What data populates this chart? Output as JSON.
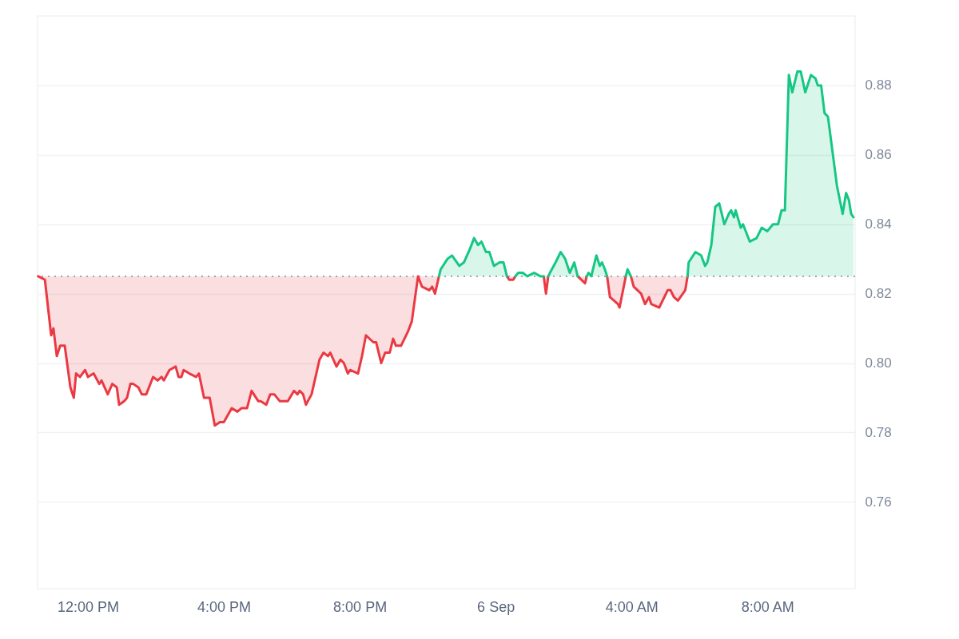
{
  "chart_data": {
    "type": "area",
    "xlim": [
      "--09-05T10:31",
      "--09-06T10:35"
    ],
    "xticks": [
      {
        "value": "--09-05T12:00",
        "label": "12:00 PM"
      },
      {
        "value": "--09-05T16:00",
        "label": "4:00 PM"
      },
      {
        "value": "--09-05T20:00",
        "label": "8:00 PM"
      },
      {
        "value": "--09-06T00:00",
        "label": "6 Sep"
      },
      {
        "value": "--09-06T04:00",
        "label": "4:00 AM"
      },
      {
        "value": "--09-06T08:00",
        "label": "8:00 AM"
      }
    ],
    "ylim": [
      0.735,
      0.9
    ],
    "yticks": [
      0.76,
      0.78,
      {
        "value": 0.8,
        "label": "0.80"
      },
      0.82,
      0.84,
      0.86,
      0.88
    ],
    "grid": "y",
    "ref_lines": [
      {
        "axis": "y",
        "value": 0.825,
        "line_style": "dotted",
        "color": "#808a9d"
      }
    ],
    "x": [
      "--09-05T10:32",
      "--09-05T10:44",
      "--09-05T10:55",
      "--09-05T10:59",
      "--09-05T11:05",
      "--09-05T11:11",
      "--09-05T11:19",
      "--09-05T11:29",
      "--09-05T11:35",
      "--09-05T11:39",
      "--09-05T11:46",
      "--09-05T11:55",
      "--09-05T12:00",
      "--09-05T12:10",
      "--09-05T12:20",
      "--09-05T12:24",
      "--09-05T12:35",
      "--09-05T12:43",
      "--09-05T12:51",
      "--09-05T12:55",
      "--09-05T13:04",
      "--09-05T13:09",
      "--09-05T13:15",
      "--09-05T13:20",
      "--09-05T13:29",
      "--09-05T13:35",
      "--09-05T13:43",
      "--09-05T13:55",
      "--09-05T14:03",
      "--09-05T14:10",
      "--09-05T14:14",
      "--09-05T14:24",
      "--09-05T14:35",
      "--09-05T14:40",
      "--09-05T14:45",
      "--09-05T14:49",
      "--09-05T14:59",
      "--09-05T15:11",
      "--09-05T15:16",
      "--09-05T15:25",
      "--09-05T15:35",
      "--09-05T15:44",
      "--09-05T15:53",
      "--09-05T16:00",
      "--09-05T16:14",
      "--09-05T16:24",
      "--09-05T16:31",
      "--09-05T16:41",
      "--09-05T16:49",
      "--09-05T17:01",
      "--09-05T17:05",
      "--09-05T17:15",
      "--09-05T17:22",
      "--09-05T17:29",
      "--09-05T17:39",
      "--09-05T17:53",
      "--09-05T18:04",
      "--09-05T18:10",
      "--09-05T18:14",
      "--09-05T18:20",
      "--09-05T18:25",
      "--09-05T18:35",
      "--09-05T18:49",
      "--09-05T18:56",
      "--09-05T19:04",
      "--09-05T19:08",
      "--09-05T19:19",
      "--09-05T19:26",
      "--09-05T19:32",
      "--09-05T19:39",
      "--09-05T19:43",
      "--09-05T19:57",
      "--09-05T20:04",
      "--09-05T20:11",
      "--09-05T20:24",
      "--09-05T20:29",
      "--09-05T20:38",
      "--09-05T20:45",
      "--09-05T20:53",
      "--09-05T20:59",
      "--09-05T21:04",
      "--09-05T21:13",
      "--09-05T21:25",
      "--09-05T21:32",
      "--09-05T21:43",
      "--09-05T21:50",
      "--09-05T22:03",
      "--09-05T22:08",
      "--09-05T22:13",
      "--09-05T22:20",
      "--09-05T22:23",
      "--09-05T22:35",
      "--09-05T22:43",
      "--09-05T22:56",
      "--09-05T23:04",
      "--09-05T23:15",
      "--09-05T23:22",
      "--09-05T23:29",
      "--09-05T23:35",
      "--09-05T23:43",
      "--09-05T23:49",
      "--09-05T23:57",
      "--09-06T00:07",
      "--09-06T00:14",
      "--09-06T00:20",
      "--09-06T00:24",
      "--09-06T00:31",
      "--09-06T00:35",
      "--09-06T00:40",
      "--09-06T00:48",
      "--09-06T00:56",
      "--09-06T01:08",
      "--09-06T01:19",
      "--09-06T01:25",
      "--09-06T01:29",
      "--09-06T01:33",
      "--09-06T01:36",
      "--09-06T01:46",
      "--09-06T01:55",
      "--09-06T02:03",
      "--09-06T02:11",
      "--09-06T02:19",
      "--09-06T02:25",
      "--09-06T02:38",
      "--09-06T02:41",
      "--09-06T02:44",
      "--09-06T02:49",
      "--09-06T02:58",
      "--09-06T03:04",
      "--09-06T03:08",
      "--09-06T03:13",
      "--09-06T03:17",
      "--09-06T03:22",
      "--09-06T03:36",
      "--09-06T03:39",
      "--09-06T03:50",
      "--09-06T03:53",
      "--09-06T03:59",
      "--09-06T04:04",
      "--09-06T04:17",
      "--09-06T04:24",
      "--09-06T04:31",
      "--09-06T04:35",
      "--09-06T04:49",
      "--09-06T05:04",
      "--09-06T05:09",
      "--09-06T05:15",
      "--09-06T05:22",
      "--09-06T05:35",
      "--09-06T05:39",
      "--09-06T05:41",
      "--09-06T05:53",
      "--09-06T06:03",
      "--09-06T06:10",
      "--09-06T06:14",
      "--09-06T06:21",
      "--09-06T06:28",
      "--09-06T06:35",
      "--09-06T06:44",
      "--09-06T06:52",
      "--09-06T06:56",
      "--09-06T07:01",
      "--09-06T07:04",
      "--09-06T07:13",
      "--09-06T07:17",
      "--09-06T07:29",
      "--09-06T07:41",
      "--09-06T07:50",
      "--09-06T08:00",
      "--09-06T08:10",
      "--09-06T08:19",
      "--09-06T08:25",
      "--09-06T08:31",
      "--09-06T08:38",
      "--09-06T08:44",
      "--09-06T08:53",
      "--09-06T08:59",
      "--09-06T09:07",
      "--09-06T09:17",
      "--09-06T09:25",
      "--09-06T09:29",
      "--09-06T09:35",
      "--09-06T09:41",
      "--09-06T09:47",
      "--09-06T10:03",
      "--09-06T10:13",
      "--09-06T10:19",
      "--09-06T10:24",
      "--09-06T10:28",
      "--09-06T10:32"
    ],
    "series": [
      {
        "type": "line",
        "color": "#ea3943",
        "values": [
          0.825,
          0.824,
          0.808,
          0.81,
          0.802,
          0.805,
          0.805,
          0.793,
          0.79,
          0.797,
          0.796,
          0.798,
          0.796,
          0.797,
          0.794,
          0.795,
          0.791,
          0.794,
          0.793,
          0.788,
          0.789,
          0.79,
          0.794,
          0.794,
          0.793,
          0.791,
          0.791,
          0.796,
          0.795,
          0.796,
          0.795,
          0.798,
          0.799,
          0.796,
          0.796,
          0.798,
          0.797,
          0.796,
          0.797,
          0.79,
          0.79,
          0.782,
          0.783,
          0.783,
          0.787,
          0.786,
          0.787,
          0.787,
          0.792,
          0.789,
          0.789,
          0.788,
          0.791,
          0.791,
          0.789,
          0.789,
          0.792,
          0.791,
          0.792,
          0.791,
          0.788,
          0.791,
          0.801,
          0.803,
          0.802,
          0.803,
          0.799,
          0.801,
          0.8,
          0.797,
          0.798,
          0.797,
          0.802,
          0.808,
          0.806,
          0.806,
          0.8,
          0.803,
          0.803,
          0.807,
          0.805,
          0.805,
          0.809,
          0.812,
          0.825,
          0.822,
          0.821,
          0.822,
          0.82,
          0.825,
          null,
          null,
          null,
          null,
          null,
          null,
          null,
          null,
          null,
          null,
          null,
          null,
          null,
          null,
          0.825,
          0.824,
          0.824,
          0.825,
          null,
          null,
          null,
          null,
          null,
          0.825,
          0.82,
          0.825,
          null,
          null,
          null,
          null,
          null,
          null,
          0.825,
          0.823,
          0.825,
          null,
          null,
          null,
          null,
          null,
          null,
          0.825,
          0.819,
          0.817,
          0.816,
          0.825,
          null,
          0.825,
          0.822,
          0.82,
          0.817,
          0.819,
          0.817,
          0.816,
          0.821,
          0.821,
          0.819,
          0.818,
          0.821,
          0.825,
          null,
          null,
          null,
          null,
          null,
          null,
          null,
          null,
          null,
          null,
          null,
          null,
          null,
          null,
          null,
          null,
          null,
          null,
          null,
          null,
          null,
          null,
          null,
          null,
          null,
          null,
          null,
          null,
          null,
          null,
          null,
          null,
          null,
          null,
          null,
          null,
          null,
          null,
          null,
          null
        ],
        "lower": [
          0.825,
          0.824,
          0.808,
          0.81,
          0.802,
          0.805,
          0.805,
          0.793,
          0.79,
          0.797,
          0.796,
          0.798,
          0.796,
          0.797,
          0.794,
          0.795,
          0.791,
          0.794,
          0.793,
          0.788,
          0.789,
          0.79,
          0.794,
          0.794,
          0.793,
          0.791,
          0.791,
          0.796,
          0.795,
          0.796,
          0.795,
          0.798,
          0.799,
          0.796,
          0.796,
          0.798,
          0.797,
          0.796,
          0.797,
          0.79,
          0.79,
          0.782,
          0.783,
          0.783,
          0.787,
          0.786,
          0.787,
          0.787,
          0.792,
          0.789,
          0.789,
          0.788,
          0.791,
          0.791,
          0.789,
          0.789,
          0.792,
          0.791,
          0.792,
          0.791,
          0.788,
          0.791,
          0.801,
          0.803,
          0.802,
          0.803,
          0.799,
          0.801,
          0.8,
          0.797,
          0.798,
          0.797,
          0.802,
          0.808,
          0.806,
          0.806,
          0.8,
          0.803,
          0.803,
          0.807,
          0.805,
          0.805,
          0.809,
          0.812,
          0.825,
          0.822,
          0.821,
          0.822,
          0.82,
          0.825,
          null,
          null,
          null,
          null,
          null,
          null,
          null,
          null,
          null,
          null,
          null,
          null,
          null,
          null,
          0.825,
          0.824,
          0.824,
          0.825,
          null,
          null,
          null,
          null,
          null,
          0.825,
          0.82,
          0.825,
          null,
          null,
          null,
          null,
          null,
          null,
          0.825,
          0.823,
          0.825,
          null,
          null,
          null,
          null,
          null,
          null,
          0.825,
          0.819,
          0.817,
          0.816,
          0.825,
          null,
          0.825,
          0.822,
          0.82,
          0.817,
          0.819,
          0.817,
          0.816,
          0.821,
          0.821,
          0.819,
          0.818,
          0.821,
          0.825,
          null,
          null,
          null,
          null,
          null,
          null,
          null,
          null,
          null,
          null,
          null,
          null,
          null,
          null,
          null,
          null,
          null,
          null,
          null,
          null,
          null,
          null,
          null,
          null,
          null,
          null,
          null,
          null,
          null,
          null,
          null,
          null,
          null,
          null,
          null,
          null,
          null,
          null,
          null,
          null
        ],
        "upper": [
          0.825,
          0.825,
          0.825,
          0.825,
          0.825,
          0.825,
          0.825,
          0.825,
          0.825,
          0.825,
          0.825,
          0.825,
          0.825,
          0.825,
          0.825,
          0.825,
          0.825,
          0.825,
          0.825,
          0.825,
          0.825,
          0.825,
          0.825,
          0.825,
          0.825,
          0.825,
          0.825,
          0.825,
          0.825,
          0.825,
          0.825,
          0.825,
          0.825,
          0.825,
          0.825,
          0.825,
          0.825,
          0.825,
          0.825,
          0.825,
          0.825,
          0.825,
          0.825,
          0.825,
          0.825,
          0.825,
          0.825,
          0.825,
          0.825,
          0.825,
          0.825,
          0.825,
          0.825,
          0.825,
          0.825,
          0.825,
          0.825,
          0.825,
          0.825,
          0.825,
          0.825,
          0.825,
          0.825,
          0.825,
          0.825,
          0.825,
          0.825,
          0.825,
          0.825,
          0.825,
          0.825,
          0.825,
          0.825,
          0.825,
          0.825,
          0.825,
          0.825,
          0.825,
          0.825,
          0.825,
          0.825,
          0.825,
          0.825,
          0.825,
          0.825,
          0.825,
          0.825,
          0.825,
          0.825,
          0.825,
          null,
          null,
          null,
          null,
          null,
          null,
          null,
          null,
          null,
          null,
          null,
          null,
          null,
          null,
          0.825,
          0.825,
          0.825,
          0.825,
          null,
          null,
          null,
          null,
          null,
          0.825,
          0.825,
          0.825,
          null,
          null,
          null,
          null,
          null,
          null,
          0.825,
          0.825,
          0.825,
          null,
          null,
          null,
          null,
          null,
          null,
          0.825,
          0.825,
          0.825,
          0.825,
          0.825,
          null,
          0.825,
          0.825,
          0.825,
          0.825,
          0.825,
          0.825,
          0.825,
          0.825,
          0.825,
          0.825,
          0.825,
          0.825,
          0.825,
          null,
          null,
          null,
          null,
          null,
          null,
          null,
          null,
          null,
          null,
          null,
          null,
          null,
          null,
          null,
          null,
          null,
          null,
          null,
          null,
          null,
          null,
          null,
          null,
          null,
          null,
          null,
          null,
          null,
          null,
          null,
          null,
          null,
          null,
          null,
          null,
          null,
          null,
          null,
          null
        ]
      },
      {
        "color": "#16c784",
        "values": [
          null,
          null,
          null,
          null,
          null,
          null,
          null,
          null,
          null,
          null,
          null,
          null,
          null,
          null,
          null,
          null,
          null,
          null,
          null,
          null,
          null,
          null,
          null,
          null,
          null,
          null,
          null,
          null,
          null,
          null,
          null,
          null,
          null,
          null,
          null,
          null,
          null,
          null,
          null,
          null,
          null,
          null,
          null,
          null,
          null,
          null,
          null,
          null,
          null,
          null,
          null,
          null,
          null,
          null,
          null,
          null,
          null,
          null,
          null,
          null,
          null,
          null,
          null,
          null,
          null,
          null,
          null,
          null,
          null,
          null,
          null,
          null,
          null,
          null,
          null,
          null,
          null,
          null,
          null,
          null,
          null,
          null,
          null,
          null,
          null,
          null,
          null,
          null,
          null,
          0.825,
          0.827,
          0.83,
          0.831,
          0.828,
          0.829,
          0.833,
          0.836,
          0.834,
          0.835,
          0.832,
          0.832,
          0.828,
          0.829,
          0.829,
          0.825,
          null,
          null,
          0.825,
          0.826,
          0.826,
          0.825,
          0.826,
          0.825,
          0.825,
          null,
          0.825,
          0.826,
          0.829,
          0.832,
          0.83,
          0.826,
          0.829,
          0.825,
          null,
          0.825,
          0.826,
          0.825,
          0.831,
          0.828,
          0.829,
          0.827,
          0.825,
          null,
          null,
          null,
          0.825,
          0.827,
          0.825,
          null,
          null,
          null,
          null,
          null,
          null,
          null,
          null,
          null,
          null,
          null,
          0.825,
          0.829,
          0.832,
          0.831,
          0.828,
          0.829,
          0.834,
          0.845,
          0.846,
          0.84,
          0.843,
          0.844,
          0.842,
          0.844,
          0.839,
          0.84,
          0.835,
          0.836,
          0.839,
          0.838,
          0.84,
          0.84,
          0.844,
          0.844,
          0.883,
          0.878,
          0.884,
          0.884,
          0.878,
          0.883,
          0.882,
          0.88,
          0.88,
          0.872,
          0.871,
          0.851,
          0.843,
          0.849,
          0.847,
          0.843,
          0.842
        ]
      }
    ]
  }
}
